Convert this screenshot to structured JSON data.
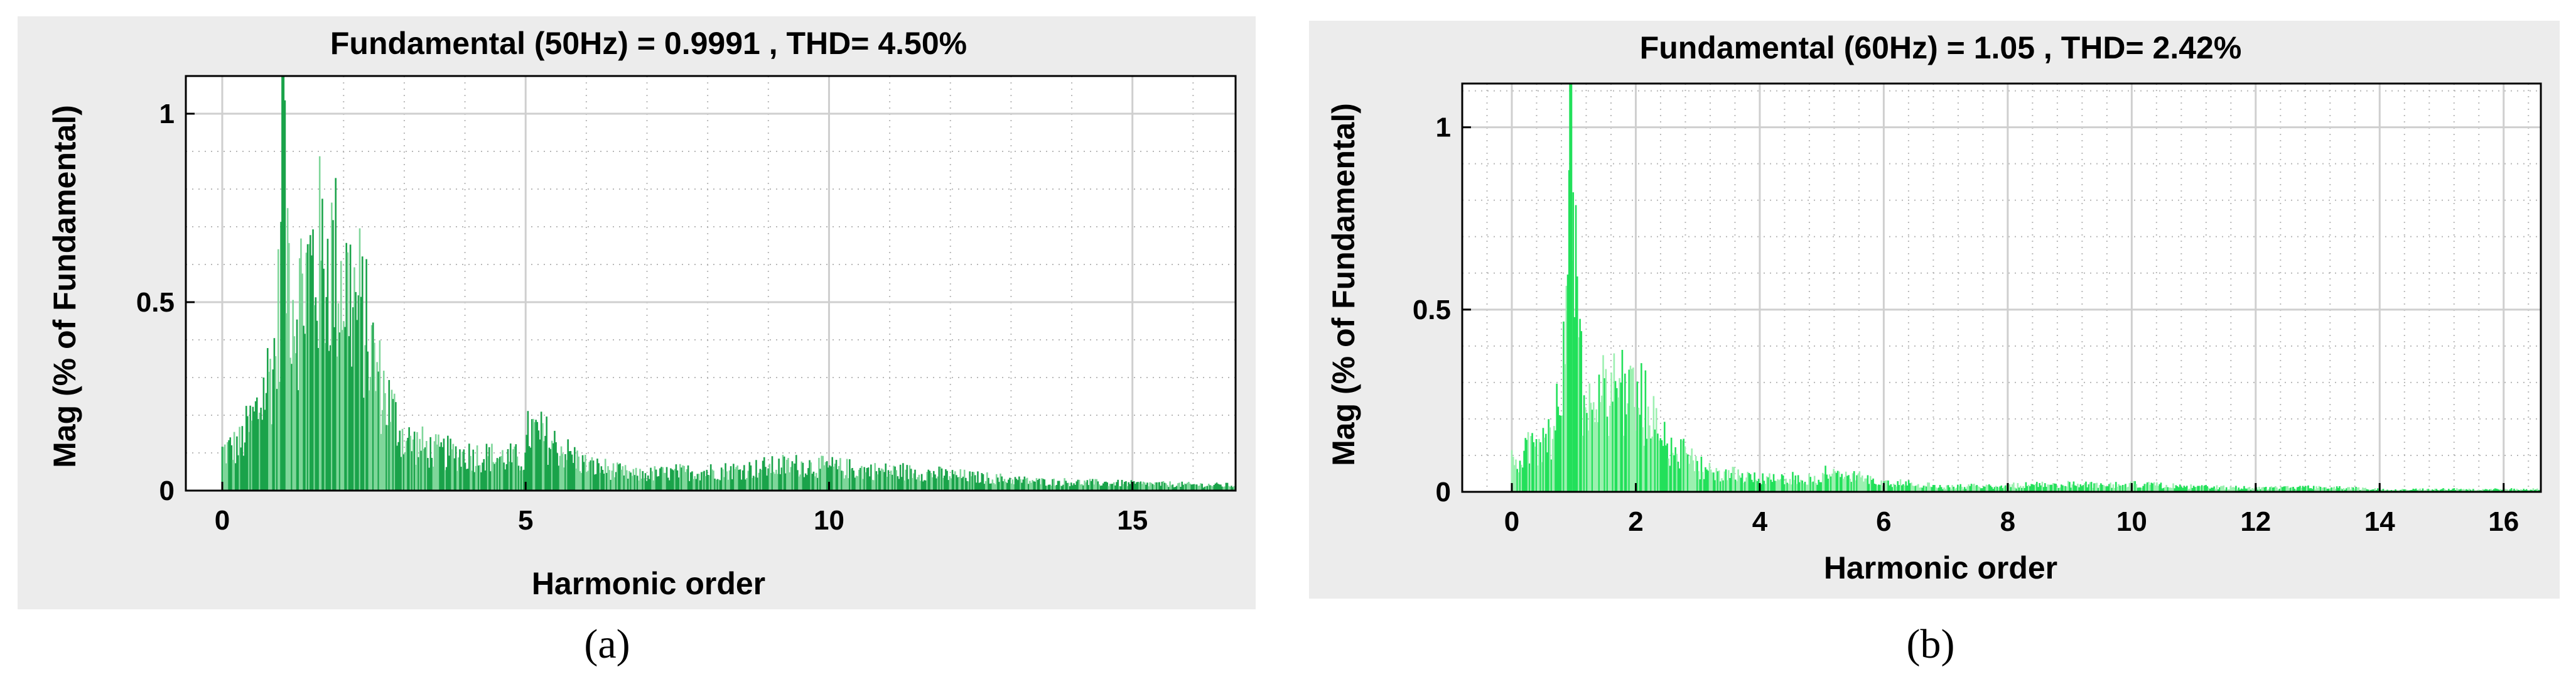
{
  "chart_data": [
    {
      "type": "bar",
      "title": "Fundamental (50Hz) = 0.9991 , THD= 4.50%",
      "xlabel": "Harmonic order",
      "ylabel": "Mag (% of Fundamental)",
      "xlim": [
        -0.6,
        16.7
      ],
      "ylim": [
        0,
        1.1
      ],
      "xticks": [
        0,
        5,
        10,
        15
      ],
      "yticks": [
        0,
        0.5,
        1
      ],
      "grid": true,
      "bar_color": "#1aa34a",
      "light_color": "#7fd69a",
      "envelope": [
        [
          0.0,
          0.15
        ],
        [
          0.3,
          0.18
        ],
        [
          0.6,
          0.32
        ],
        [
          0.9,
          0.55
        ],
        [
          1.0,
          1.1
        ],
        [
          1.2,
          0.72
        ],
        [
          1.5,
          0.88
        ],
        [
          1.8,
          0.9
        ],
        [
          2.0,
          0.82
        ],
        [
          2.3,
          0.68
        ],
        [
          2.6,
          0.42
        ],
        [
          3.0,
          0.2
        ],
        [
          3.5,
          0.15
        ],
        [
          4.0,
          0.14
        ],
        [
          5.0,
          0.12
        ],
        [
          5.05,
          0.24
        ],
        [
          6.0,
          0.1
        ],
        [
          6.8,
          0.06
        ],
        [
          7.5,
          0.07
        ],
        [
          8.5,
          0.08
        ],
        [
          9.5,
          0.1
        ],
        [
          10.5,
          0.08
        ],
        [
          11.5,
          0.07
        ],
        [
          12.5,
          0.05
        ],
        [
          13.5,
          0.035
        ],
        [
          14.5,
          0.03
        ],
        [
          15.5,
          0.025
        ],
        [
          16.7,
          0.02
        ]
      ],
      "caption": "(a)"
    },
    {
      "type": "bar",
      "title": "Fundamental (60Hz) = 1.05 , THD= 2.42%",
      "xlabel": "Harmonic order",
      "ylabel": "Mag (% of Fundamental)",
      "xlim": [
        -0.8,
        16.6
      ],
      "ylim": [
        0,
        1.12
      ],
      "xticks": [
        0,
        2,
        4,
        6,
        8,
        10,
        12,
        14,
        16
      ],
      "yticks": [
        0,
        0.5,
        1
      ],
      "grid": true,
      "bar_color": "#22e05a",
      "light_color": "#9cf0b0",
      "envelope": [
        [
          0.0,
          0.12
        ],
        [
          0.3,
          0.17
        ],
        [
          0.6,
          0.2
        ],
        [
          0.8,
          0.45
        ],
        [
          0.95,
          1.12
        ],
        [
          1.0,
          0.9
        ],
        [
          1.15,
          0.4
        ],
        [
          1.4,
          0.4
        ],
        [
          1.8,
          0.44
        ],
        [
          2.2,
          0.32
        ],
        [
          2.6,
          0.18
        ],
        [
          3.0,
          0.1
        ],
        [
          3.5,
          0.07
        ],
        [
          4.0,
          0.06
        ],
        [
          5.0,
          0.05
        ],
        [
          5.05,
          0.08
        ],
        [
          6.0,
          0.04
        ],
        [
          7.0,
          0.02
        ],
        [
          8.0,
          0.025
        ],
        [
          9.0,
          0.03
        ],
        [
          10.0,
          0.03
        ],
        [
          11.0,
          0.02
        ],
        [
          12.0,
          0.015
        ],
        [
          13.0,
          0.02
        ],
        [
          14.0,
          0.01
        ],
        [
          15.0,
          0.01
        ],
        [
          16.0,
          0.01
        ]
      ],
      "caption": "(b)"
    }
  ]
}
